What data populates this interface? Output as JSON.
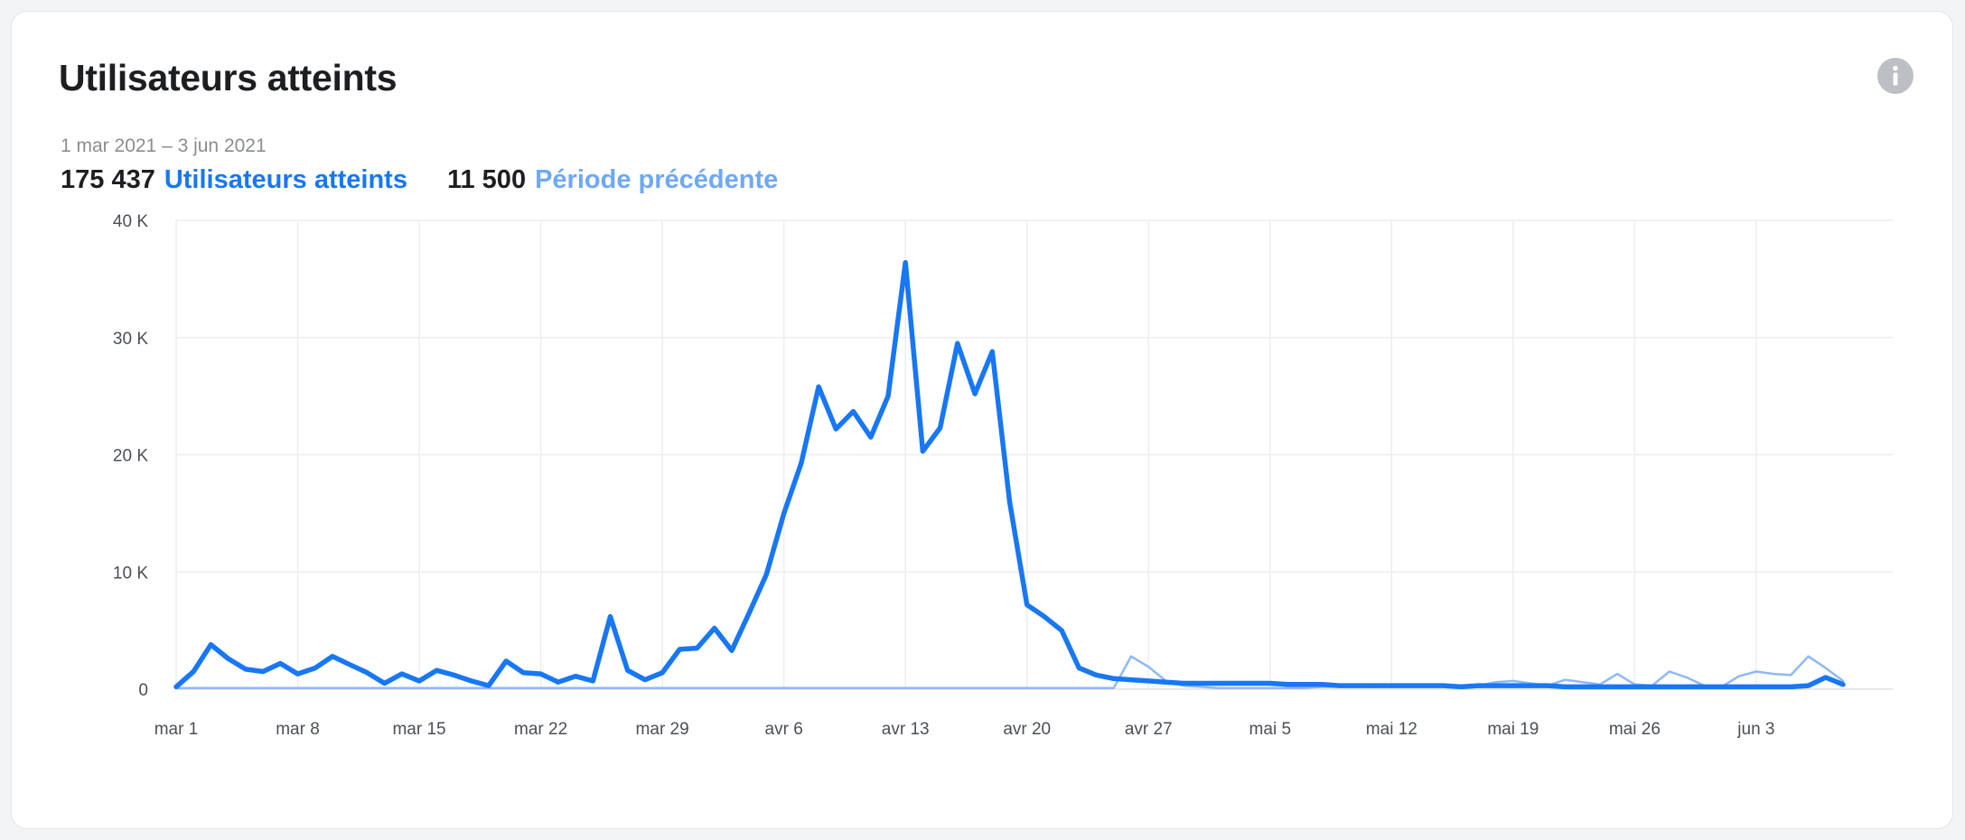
{
  "card": {
    "title": "Utilisateurs atteints",
    "date_range": "1 mar 2021 – 3 jun 2021",
    "current_total": "175 437",
    "current_label": "Utilisateurs atteints",
    "previous_total": "11 500",
    "previous_label": "Période précédente",
    "info_icon": "info-icon"
  },
  "colors": {
    "current": "#1877f2",
    "previous": "#8fb8f5",
    "grid": "#eceef1",
    "info_icon": "#bcc0c4"
  },
  "chart_data": {
    "type": "line",
    "ylim": [
      0,
      40000
    ],
    "y_ticks": [
      0,
      10000,
      20000,
      30000,
      40000
    ],
    "y_tick_labels": [
      "0",
      "10 K",
      "20 K",
      "30 K",
      "40 K"
    ],
    "x_tick_labels": [
      "mar 1",
      "mar 8",
      "mar 15",
      "mar 22",
      "mar 29",
      "avr 6",
      "avr 13",
      "avr 20",
      "avr 27",
      "mai 5",
      "mai 12",
      "mai 19",
      "mai 26",
      "jun 3"
    ],
    "grid": true,
    "series": [
      {
        "name": "Utilisateurs atteints",
        "values": [
          200,
          1500,
          3800,
          2600,
          1700,
          1500,
          2200,
          1300,
          1800,
          2800,
          2100,
          1400,
          500,
          1300,
          700,
          1600,
          1200,
          700,
          300,
          2400,
          1400,
          1300,
          600,
          1100,
          700,
          6200,
          1600,
          800,
          1400,
          3400,
          3500,
          5200,
          3300,
          6500,
          9800,
          15000,
          19300,
          25800,
          22200,
          23700,
          21500,
          25000,
          36400,
          20300,
          22300,
          29500,
          25200,
          28800,
          16000,
          7200,
          6200,
          5000,
          1800,
          1200,
          900,
          800,
          700,
          600,
          500,
          500,
          500,
          500,
          500,
          500,
          400,
          400,
          400,
          300,
          300,
          300,
          300,
          300,
          300,
          300,
          200,
          300,
          300,
          300,
          300,
          300,
          200,
          200,
          200,
          200,
          200,
          200,
          200,
          200,
          200,
          200,
          200,
          200,
          200,
          200,
          300,
          1000,
          400
        ]
      },
      {
        "name": "Période précédente",
        "values": [
          100,
          100,
          100,
          100,
          100,
          100,
          100,
          100,
          100,
          100,
          100,
          100,
          100,
          100,
          100,
          100,
          100,
          100,
          100,
          100,
          100,
          100,
          100,
          100,
          100,
          100,
          100,
          100,
          100,
          100,
          100,
          100,
          100,
          100,
          100,
          100,
          100,
          100,
          100,
          100,
          100,
          100,
          100,
          100,
          100,
          100,
          100,
          100,
          100,
          100,
          100,
          100,
          100,
          100,
          100,
          2800,
          1900,
          700,
          300,
          200,
          100,
          100,
          100,
          100,
          100,
          100,
          200,
          200,
          300,
          200,
          300,
          200,
          400,
          300,
          300,
          300,
          600,
          700,
          500,
          300,
          800,
          600,
          400,
          1300,
          400,
          300,
          1500,
          1000,
          300,
          200,
          1100,
          1500,
          1300,
          1200,
          2800,
          1800,
          700
        ]
      }
    ]
  }
}
